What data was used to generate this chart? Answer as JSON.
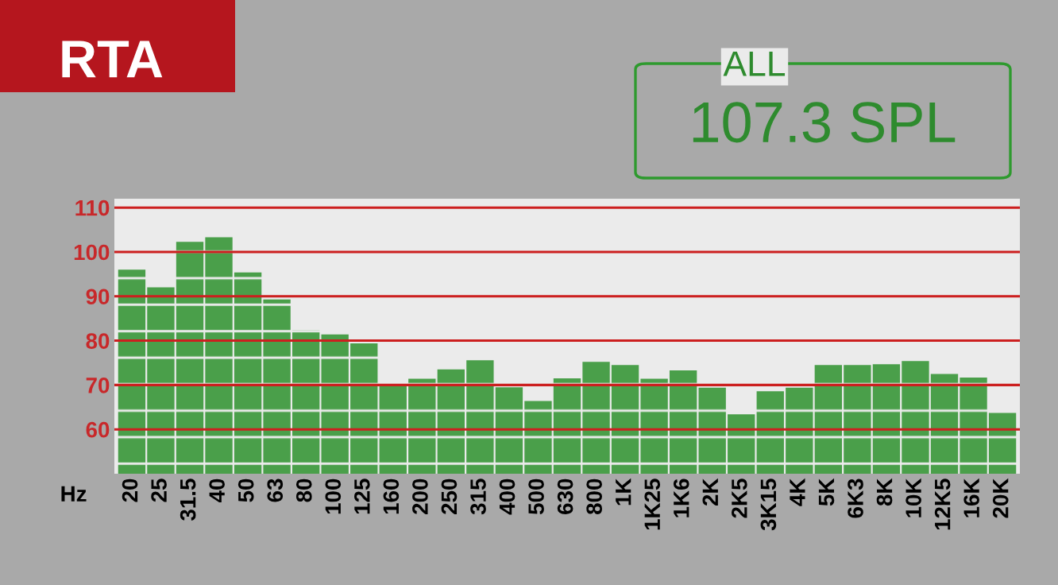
{
  "chart_data": {
    "type": "bar",
    "title": "RTA",
    "xlabel": "Hz",
    "annotations": [
      "ALL",
      "107.3 SPL"
    ],
    "categories": [
      "20",
      "25",
      "31.5",
      "40",
      "50",
      "63",
      "80",
      "100",
      "125",
      "160",
      "200",
      "250",
      "315",
      "400",
      "500",
      "630",
      "800",
      "1K",
      "1K25",
      "1K6",
      "2K",
      "2K5",
      "3K15",
      "4K",
      "5K",
      "6K3",
      "8K",
      "10K",
      "12K5",
      "16K",
      "20K"
    ],
    "values": [
      96,
      92,
      102.3,
      103.3,
      95.4,
      89.3,
      82.4,
      81.4,
      79.4,
      70,
      71.4,
      73.5,
      75.6,
      69.5,
      66.4,
      71.5,
      75.2,
      74.5,
      71.4,
      73.3,
      69.4,
      63.4,
      68.6,
      69.4,
      74.5,
      74.5,
      74.7,
      75.4,
      72.5,
      71.7,
      63.7
    ],
    "color": "#4a9f4a",
    "ylim": [
      50,
      112
    ],
    "yticks": [
      60,
      70,
      80,
      90,
      100,
      110
    ],
    "grid": "y"
  }
}
